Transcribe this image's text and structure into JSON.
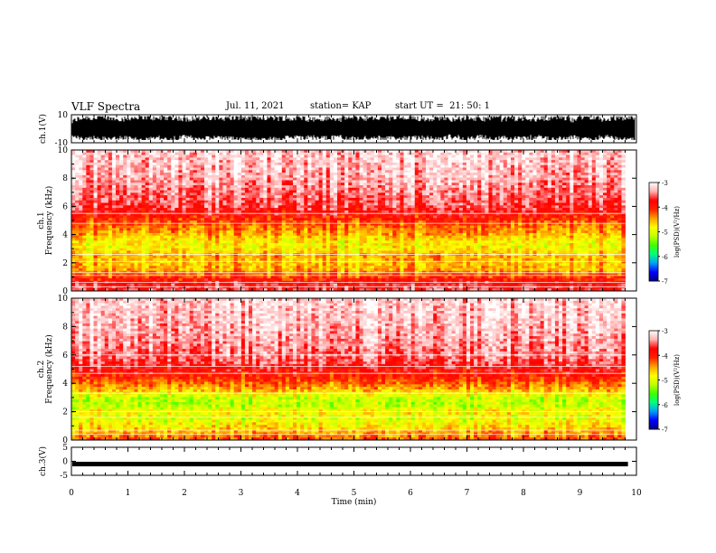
{
  "header": {
    "title": "VLF Spectra",
    "date": "Jul. 11, 2021",
    "station": "station= KAP",
    "start": "start UT =  21: 50: 1"
  },
  "chart_data": [
    {
      "type": "line",
      "panel": "ch1-waveform",
      "ylabel": "ch.1(V)",
      "ylim": [
        -10,
        10
      ],
      "yticks": [
        "10",
        "-10"
      ],
      "xlim": [
        0,
        10
      ],
      "amplitude_range": [
        -8,
        9
      ],
      "trace_color": "#000000"
    },
    {
      "type": "heatmap",
      "panel": "ch1-spectrogram",
      "ylabel": "ch.1 Frequency (kHz)",
      "ylim": [
        0,
        10
      ],
      "yticks": [
        "0",
        "2",
        "4",
        "6",
        "8",
        "10"
      ],
      "xlim": [
        0,
        10
      ],
      "data_end_min": 9.8,
      "z_label": "log(PSD)(V²/Hz)",
      "zlim": [
        -7,
        -3
      ],
      "zticks": [
        "-3",
        "-4",
        "-5",
        "-6",
        "-7"
      ],
      "profile_freq_khz": [
        0,
        0.5,
        1.0,
        1.5,
        2.0,
        2.5,
        3.0,
        3.5,
        4.0,
        4.5,
        5.0,
        5.5,
        6.0,
        8.0,
        10.0
      ],
      "profile_logpsd": [
        -3.6,
        -3.7,
        -4.1,
        -4.5,
        -4.6,
        -4.5,
        -4.8,
        -4.8,
        -4.5,
        -4.3,
        -4.1,
        -3.8,
        -3.6,
        -3.3,
        -3.2
      ],
      "tone_lines_khz": [
        0.3,
        0.6,
        1.1,
        1.3,
        2.1,
        2.6,
        4.8,
        5.5
      ]
    },
    {
      "type": "heatmap",
      "panel": "ch2-spectrogram",
      "ylabel": "ch.2 Frequency (kHz)",
      "ylim": [
        0,
        10
      ],
      "yticks": [
        "0",
        "2",
        "4",
        "6",
        "8",
        "10"
      ],
      "xlim": [
        0,
        10
      ],
      "data_end_min": 9.8,
      "z_label": "log(PSD)(V²/Hz)",
      "zlim": [
        -7,
        -3
      ],
      "zticks": [
        "-3",
        "-4",
        "-5",
        "-6",
        "-7"
      ],
      "profile_freq_khz": [
        0,
        0.5,
        1.0,
        1.5,
        2.0,
        2.5,
        3.0,
        3.5,
        4.0,
        4.5,
        5.0,
        5.5,
        6.0,
        8.0,
        10.0
      ],
      "profile_logpsd": [
        -4.2,
        -4.5,
        -4.8,
        -5.0,
        -4.8,
        -5.2,
        -5.1,
        -4.6,
        -4.3,
        -4.0,
        -3.8,
        -3.6,
        -3.5,
        -3.3,
        -3.2
      ],
      "tone_lines_khz": [
        0.4,
        0.7,
        1.6,
        2.0,
        3.3,
        4.7,
        5.2,
        6.0
      ]
    },
    {
      "type": "line",
      "panel": "ch3-waveform",
      "ylabel": "ch.3(V)",
      "ylim": [
        -5,
        5
      ],
      "yticks": [
        "5",
        "0",
        "-5"
      ],
      "xlim": [
        0,
        10
      ],
      "offset_v": -1.0,
      "amplitude_v": 0.4,
      "trace_color": "#000000"
    }
  ],
  "time_axis": {
    "label": "Time (min)",
    "ticks": [
      "0",
      "1",
      "2",
      "3",
      "4",
      "5",
      "6",
      "7",
      "8",
      "9",
      "10"
    ]
  },
  "colorscale": [
    "#000080",
    "#0000ff",
    "#00a0ff",
    "#00ff80",
    "#40ff00",
    "#c0ff00",
    "#ffff00",
    "#ffa000",
    "#ff2000",
    "#ff0000",
    "#ffb0b0",
    "#ffffff"
  ]
}
